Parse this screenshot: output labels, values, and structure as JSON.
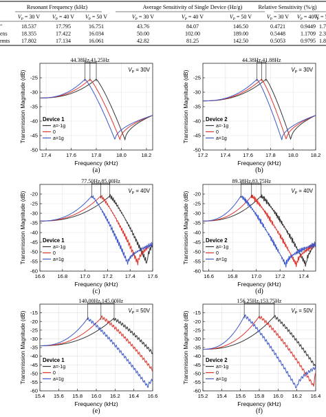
{
  "table": {
    "group_headers": [
      "Resonant Frequency (kHz)",
      "Average Sensitivity of Single Device (Hz/g)",
      "Relative Sensitivity (%/g)"
    ],
    "sub_headers": [
      "V_P = 30 V",
      "V_P = 40 V",
      "V_P = 50 V"
    ],
    "rows": [
      {
        "label": "″",
        "values": [
          "18.537",
          "17.795",
          "16.751",
          "43.76",
          "84.07",
          "146.50",
          "0.4721",
          "0.9449",
          "1.7491"
        ]
      },
      {
        "label": "ens",
        "values": [
          "18.355",
          "17.422",
          "16.034",
          "50.00",
          "102.00",
          "189.00",
          "0.5448",
          "1.1709",
          "2.3575"
        ]
      },
      {
        "label": "rmts",
        "values": [
          "17.802",
          "17.134",
          "16.061",
          "42.82",
          "81.25",
          "142.50",
          "0.5053",
          "0.9795",
          "1.8523"
        ]
      }
    ]
  },
  "panels": [
    {
      "caption": "(a)",
      "device": "Device 1",
      "vp": "V_P = 30V",
      "ann_left": "44.38Hz",
      "ann_right": "41.25Hz",
      "xlabel": "Frequency (kHz)",
      "ylabel": "Transmission Magnitude (dB)",
      "chart_data": {
        "type": "line",
        "xlim": [
          17.35,
          18.25
        ],
        "ylim": [
          -50,
          -20
        ],
        "xticks": [
          17.4,
          17.6,
          17.8,
          18.0,
          18.2
        ],
        "yticks": [
          -25,
          -30,
          -35,
          -40,
          -45,
          -50
        ],
        "legend": [
          "a=-1g",
          "0",
          "a=1g"
        ],
        "series_colors": [
          "#333333",
          "#e0332a",
          "#3a56c9"
        ],
        "peaks": [
          17.8,
          17.75,
          17.71
        ],
        "dips": [
          18.03,
          17.99,
          17.95
        ],
        "peak_db": -25.5,
        "dip_db": -46.5,
        "start_db": -32,
        "end_db": -38
      }
    },
    {
      "caption": "(b)",
      "device": "Device 2",
      "vp": "V_P = 30V",
      "ann_left": "44.38Hz",
      "ann_right": "41.88Hz",
      "xlabel": "Frequency (kHz)",
      "ylabel": "Transmission Magnitude (dB)",
      "chart_data": {
        "type": "line",
        "xlim": [
          17.2,
          18.2
        ],
        "ylim": [
          -50,
          -20
        ],
        "xticks": [
          17.2,
          17.4,
          17.6,
          17.8,
          18.0,
          18.2
        ],
        "yticks": [
          -25,
          -30,
          -35,
          -40,
          -45,
          -50
        ],
        "legend": [
          "a=-1g",
          "0",
          "a=1g"
        ],
        "series_colors": [
          "#333333",
          "#e0332a",
          "#3a56c9"
        ],
        "peaks": [
          17.76,
          17.72,
          17.68
        ],
        "dips": [
          17.98,
          17.94,
          17.9
        ],
        "peak_db": -25.5,
        "dip_db": -46.5,
        "start_db": -33,
        "end_db": -38
      }
    },
    {
      "caption": "(c)",
      "device": "Device 1",
      "vp": "V_P = 40V",
      "ann_left": "77.50Hz",
      "ann_right": "85.00Hz",
      "xlabel": "Frequency (kHz)",
      "ylabel": "Transmission Magnitude (dB)",
      "chart_data": {
        "type": "line",
        "xlim": [
          16.6,
          17.6
        ],
        "ylim": [
          -60,
          -15
        ],
        "xticks": [
          16.6,
          16.8,
          17.0,
          17.2,
          17.4,
          17.6
        ],
        "yticks": [
          -20,
          -25,
          -30,
          -35,
          -40,
          -45,
          -50,
          -55,
          -60
        ],
        "legend": [
          "a=-1g",
          "0",
          "a=1g"
        ],
        "series_colors": [
          "#333333",
          "#e0332a",
          "#3a56c9"
        ],
        "peaks": [
          17.22,
          17.14,
          17.06
        ],
        "dips": [
          17.55,
          17.47,
          17.38
        ],
        "peak_db": -21,
        "dip_db": -56,
        "start_db": -34,
        "end_db": -46
      }
    },
    {
      "caption": "(d)",
      "device": "Device 2",
      "vp": "V_P = 40V",
      "ann_left": "89.38Hz",
      "ann_right": "83.75Hz",
      "xlabel": "Frequency (kHz)",
      "ylabel": "Transmission Magnitude (dB)",
      "chart_data": {
        "type": "line",
        "xlim": [
          16.55,
          17.5
        ],
        "ylim": [
          -60,
          -15
        ],
        "xticks": [
          16.6,
          16.8,
          17.0,
          17.2,
          17.4
        ],
        "yticks": [
          -20,
          -25,
          -30,
          -35,
          -40,
          -45,
          -50,
          -55,
          -60
        ],
        "legend": [
          "a=-1g",
          "0",
          "a=1g"
        ],
        "series_colors": [
          "#333333",
          "#e0332a",
          "#3a56c9"
        ],
        "peaks": [
          17.04,
          16.96,
          16.87
        ],
        "dips": [
          17.42,
          17.34,
          17.25
        ],
        "peak_db": -21,
        "dip_db": -57,
        "start_db": -34,
        "end_db": -46
      }
    },
    {
      "caption": "(e)",
      "device": "Device 1",
      "vp": "V_P = 50V",
      "ann_left": "140.00Hz",
      "ann_right": "145.00Hz",
      "xlabel": "Frequency (kHz)",
      "ylabel": "Transmission Magnitude (dB)",
      "chart_data": {
        "type": "line",
        "xlim": [
          15.4,
          16.6
        ],
        "ylim": [
          -60,
          -10
        ],
        "xticks": [
          15.4,
          15.6,
          15.8,
          16.0,
          16.2,
          16.4,
          16.6
        ],
        "yticks": [
          -15,
          -20,
          -25,
          -30,
          -35,
          -40,
          -45,
          -50,
          -55,
          -60
        ],
        "legend": [
          "a=-1g",
          "0",
          "a=1g"
        ],
        "series_colors": [
          "#333333",
          "#e0332a",
          "#3a56c9"
        ],
        "peaks": [
          16.19,
          16.05,
          15.91
        ],
        "dips": [
          16.9,
          16.75,
          16.55
        ],
        "peak_db": -18,
        "dip_db": -58,
        "start_db": -34,
        "end_db": -54
      }
    },
    {
      "caption": "(f)",
      "device": "Device 2",
      "vp": "V_P = 50V",
      "ann_left": "156.25Hz",
      "ann_right": "153.75Hz",
      "xlabel": "Frequency (kHz)",
      "ylabel": "Transmission Magnitude (dB)",
      "chart_data": {
        "type": "line",
        "xlim": [
          15.2,
          16.4
        ],
        "ylim": [
          -60,
          -10
        ],
        "xticks": [
          15.2,
          15.4,
          15.6,
          15.8,
          16.0,
          16.2,
          16.4
        ],
        "yticks": [
          -15,
          -20,
          -25,
          -30,
          -35,
          -40,
          -45,
          -50,
          -55,
          -60
        ],
        "legend": [
          "a=-1g",
          "0",
          "a=1g"
        ],
        "series_colors": [
          "#333333",
          "#e0332a",
          "#3a56c9"
        ],
        "peaks": [
          15.96,
          15.8,
          15.64
        ],
        "dips": [
          16.55,
          16.38,
          16.2
        ],
        "peak_db": -17,
        "dip_db": -58,
        "start_db": -36,
        "end_db": -46
      }
    }
  ]
}
